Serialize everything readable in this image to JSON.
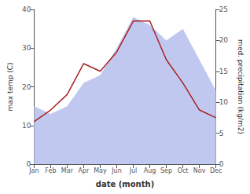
{
  "chart_data": {
    "type": "line",
    "xlabel": "date (month)",
    "ylabel": "max temp (C)",
    "y2label": "med. precipitation (kg/m2)",
    "categories": [
      "Jan",
      "Feb",
      "Mar",
      "Apr",
      "May",
      "Jun",
      "Jul",
      "Aug",
      "Sep",
      "Oct",
      "Nov",
      "Dec"
    ],
    "series": [
      {
        "type": "area",
        "color": "#c0c8f0",
        "values": [
          15,
          13,
          15,
          21,
          23,
          30,
          38,
          36,
          32,
          35,
          27,
          19
        ]
      },
      {
        "type": "line",
        "color": "#aa2222",
        "values": [
          11,
          14,
          18,
          26,
          24,
          29,
          37,
          37,
          27,
          21,
          14,
          12
        ]
      }
    ],
    "ylim": [
      0,
      40
    ],
    "yticks": [
      0,
      10,
      20,
      30,
      40
    ],
    "y2lim": [
      0,
      25
    ],
    "y2ticks": [
      0,
      5,
      10,
      15,
      20,
      25
    ],
    "grid": false
  }
}
